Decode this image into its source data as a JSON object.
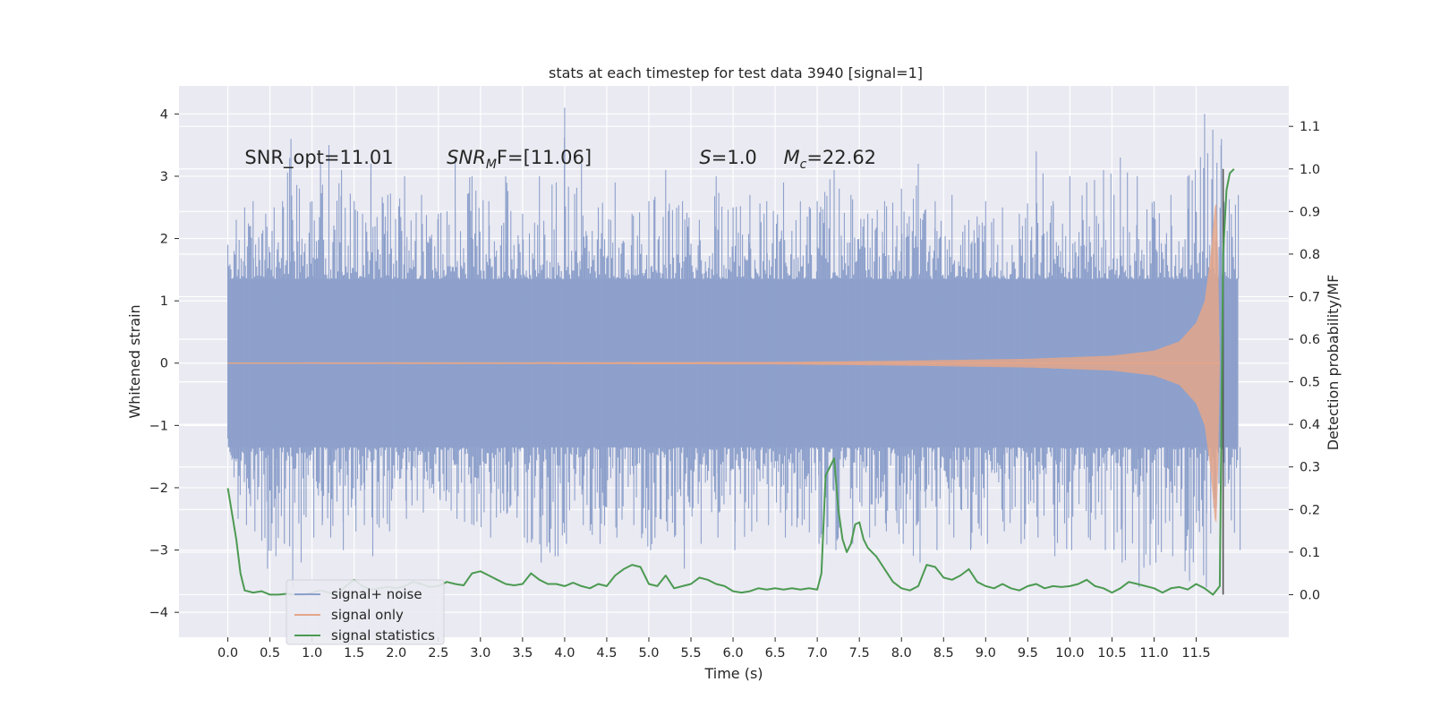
{
  "chart_data": {
    "type": "line",
    "title": "stats at each timestep for test data 3940 [signal=1]",
    "xlabel": "Time (s)",
    "ylabel": "Whitened strain",
    "y2label": "Detection probability/MF",
    "xlim": [
      -0.58,
      12.6
    ],
    "ylim": [
      -4.4,
      4.45
    ],
    "y2lim": [
      -0.1,
      1.195
    ],
    "xticks": [
      0.0,
      0.5,
      1.0,
      1.5,
      2.0,
      2.5,
      3.0,
      3.5,
      4.0,
      4.5,
      5.0,
      5.5,
      6.0,
      6.5,
      7.0,
      7.5,
      8.0,
      8.5,
      9.0,
      9.5,
      10.0,
      10.5,
      11.0,
      11.5
    ],
    "xtick_labels": [
      "0.0",
      "0.5",
      "1.0",
      "1.5",
      "2.0",
      "2.5",
      "3.0",
      "3.5",
      "4.0",
      "4.5",
      "5.0",
      "5.5",
      "6.0",
      "6.5",
      "7.0",
      "7.5",
      "8.0",
      "8.5",
      "9.0",
      "9.5",
      "10.0",
      "10.5",
      "11.0",
      "11.5"
    ],
    "yticks": [
      4,
      3,
      2,
      1,
      0,
      -1,
      -2,
      -3,
      -4
    ],
    "ytick_labels": [
      "4",
      "3",
      "2",
      "1",
      "0",
      "−1",
      "−2",
      "−3",
      "−4"
    ],
    "y2ticks": [
      1.1,
      1.0,
      0.9,
      0.8,
      0.7,
      0.6,
      0.5,
      0.4,
      0.3,
      0.2,
      0.1,
      0.0
    ],
    "y2tick_labels": [
      "1.1",
      "1.0",
      "0.9",
      "0.8",
      "0.7",
      "0.6",
      "0.5",
      "0.4",
      "0.3",
      "0.2",
      "0.1",
      "0.0"
    ],
    "grid": true,
    "legend_position": "lower-left",
    "colors": {
      "noise": "#8da0cb",
      "signal": "#e4a68a",
      "stats": "#4c9a52",
      "marker": "#555555",
      "background": "#eaeaf2"
    },
    "annotations": [
      {
        "label": "SNR_opt=11.01",
        "x": 0.2,
        "y": 3.3,
        "italic": false
      },
      {
        "label": "SNR",
        "sub": "M",
        "rest": "F=[11.06]",
        "x": 2.6,
        "y": 3.3,
        "italic": true
      },
      {
        "label": "S",
        "rest": "=1.0",
        "x": 5.6,
        "y": 3.3,
        "italic": true
      },
      {
        "label": "M",
        "sub": "c",
        "rest": "=22.62",
        "x": 6.6,
        "y": 3.3,
        "italic": true
      }
    ],
    "series": [
      {
        "name": "signal+ noise",
        "kind": "noise_band",
        "x_range": [
          0.0,
          12.0
        ],
        "band_upper": 1.35,
        "band_lower": -1.35,
        "peak_envelope": [
          [
            0.0,
            1.9,
            -1.1
          ],
          [
            0.1,
            2.3,
            -2.5
          ],
          [
            0.2,
            2.5,
            -2.6
          ],
          [
            0.3,
            2.6,
            -2.7
          ],
          [
            0.45,
            2.4,
            -3.3
          ],
          [
            0.55,
            2.5,
            -3.1
          ],
          [
            0.65,
            2.6,
            -2.9
          ],
          [
            0.75,
            3.6,
            -3.6
          ],
          [
            0.85,
            2.8,
            -3.2
          ],
          [
            1.0,
            2.6,
            -2.8
          ],
          [
            1.1,
            3.2,
            -2.6
          ],
          [
            1.2,
            3.5,
            -2.8
          ],
          [
            1.35,
            3.1,
            -3.0
          ],
          [
            1.5,
            2.6,
            -2.7
          ],
          [
            1.6,
            2.4,
            -2.6
          ],
          [
            1.7,
            3.2,
            -3.1
          ],
          [
            1.9,
            2.7,
            -2.7
          ],
          [
            2.1,
            3.0,
            -2.5
          ],
          [
            2.3,
            2.7,
            -2.4
          ],
          [
            2.5,
            2.4,
            -2.2
          ],
          [
            2.7,
            3.3,
            -2.5
          ],
          [
            2.9,
            3.0,
            -2.6
          ],
          [
            3.1,
            2.6,
            -2.8
          ],
          [
            3.3,
            3.0,
            -2.4
          ],
          [
            3.5,
            2.4,
            -2.8
          ],
          [
            3.7,
            3.0,
            -3.2
          ],
          [
            3.9,
            2.9,
            -3.1
          ],
          [
            4.0,
            4.1,
            -2.9
          ],
          [
            4.2,
            3.2,
            -2.6
          ],
          [
            4.4,
            2.5,
            -2.9
          ],
          [
            4.6,
            2.9,
            -2.8
          ],
          [
            4.8,
            2.4,
            -2.6
          ],
          [
            5.0,
            2.6,
            -3.0
          ],
          [
            5.2,
            3.1,
            -2.7
          ],
          [
            5.4,
            2.6,
            -3.3
          ],
          [
            5.6,
            2.3,
            -2.9
          ],
          [
            5.8,
            3.0,
            -2.8
          ],
          [
            6.0,
            2.5,
            -3.0
          ],
          [
            6.2,
            2.7,
            -2.7
          ],
          [
            6.4,
            2.6,
            -2.6
          ],
          [
            6.6,
            2.9,
            -2.8
          ],
          [
            6.8,
            2.6,
            -2.6
          ],
          [
            7.0,
            2.6,
            -2.9
          ],
          [
            7.2,
            3.1,
            -3.0
          ],
          [
            7.4,
            2.7,
            -2.9
          ],
          [
            7.6,
            2.4,
            -2.8
          ],
          [
            7.8,
            2.6,
            -2.7
          ],
          [
            8.0,
            2.8,
            -2.9
          ],
          [
            8.2,
            3.2,
            -3.2
          ],
          [
            8.4,
            2.6,
            -3.0
          ],
          [
            8.6,
            2.7,
            -2.8
          ],
          [
            8.8,
            2.3,
            -3.0
          ],
          [
            9.0,
            2.6,
            -2.9
          ],
          [
            9.2,
            2.5,
            -2.7
          ],
          [
            9.4,
            2.4,
            -2.9
          ],
          [
            9.6,
            3.4,
            -2.8
          ],
          [
            9.8,
            2.6,
            -3.1
          ],
          [
            10.0,
            3.0,
            -3.0
          ],
          [
            10.2,
            2.9,
            -2.8
          ],
          [
            10.4,
            3.1,
            -3.0
          ],
          [
            10.6,
            3.3,
            -3.2
          ],
          [
            10.8,
            3.0,
            -3.6
          ],
          [
            11.0,
            2.6,
            -3.2
          ],
          [
            11.2,
            2.7,
            -3.1
          ],
          [
            11.4,
            3.0,
            -3.5
          ],
          [
            11.6,
            4.0,
            -3.6
          ],
          [
            11.8,
            3.6,
            -2.5
          ],
          [
            12.0,
            2.7,
            -3.0
          ]
        ]
      },
      {
        "name": "signal only",
        "kind": "chirp",
        "x_range": [
          0.0,
          11.78
        ],
        "amplitude": [
          [
            0.0,
            0.01
          ],
          [
            6.5,
            0.02
          ],
          [
            8.0,
            0.04
          ],
          [
            9.5,
            0.07
          ],
          [
            10.5,
            0.12
          ],
          [
            11.0,
            0.2
          ],
          [
            11.3,
            0.35
          ],
          [
            11.5,
            0.65
          ],
          [
            11.6,
            1.0
          ],
          [
            11.67,
            1.7
          ],
          [
            11.72,
            2.5
          ],
          [
            11.75,
            2.6
          ],
          [
            11.78,
            0.0
          ]
        ]
      },
      {
        "name": "signal statistics",
        "kind": "line",
        "x": [
          0.0,
          0.1,
          0.15,
          0.2,
          0.3,
          0.4,
          0.5,
          0.6,
          0.7,
          0.8,
          0.9,
          1.0,
          1.1,
          1.2,
          1.3,
          1.4,
          1.5,
          1.6,
          1.7,
          1.8,
          1.9,
          2.0,
          2.1,
          2.2,
          2.3,
          2.4,
          2.5,
          2.6,
          2.7,
          2.8,
          2.9,
          3.0,
          3.1,
          3.2,
          3.3,
          3.4,
          3.5,
          3.6,
          3.7,
          3.8,
          3.9,
          4.0,
          4.1,
          4.2,
          4.3,
          4.4,
          4.5,
          4.6,
          4.7,
          4.8,
          4.9,
          5.0,
          5.1,
          5.2,
          5.3,
          5.4,
          5.5,
          5.6,
          5.7,
          5.8,
          5.9,
          6.0,
          6.1,
          6.2,
          6.3,
          6.4,
          6.5,
          6.6,
          6.7,
          6.8,
          6.9,
          7.0,
          7.05,
          7.1,
          7.15,
          7.2,
          7.25,
          7.3,
          7.35,
          7.4,
          7.45,
          7.5,
          7.55,
          7.6,
          7.65,
          7.7,
          7.8,
          7.9,
          8.0,
          8.1,
          8.2,
          8.3,
          8.4,
          8.5,
          8.6,
          8.7,
          8.8,
          8.9,
          9.0,
          9.1,
          9.2,
          9.3,
          9.4,
          9.5,
          9.6,
          9.7,
          9.8,
          9.9,
          10.0,
          10.1,
          10.2,
          10.3,
          10.4,
          10.5,
          10.6,
          10.7,
          10.8,
          10.9,
          11.0,
          11.1,
          11.2,
          11.3,
          11.4,
          11.5,
          11.6,
          11.7,
          11.78,
          11.82,
          11.86,
          11.9,
          11.95
        ],
        "y": [
          0.25,
          0.13,
          0.05,
          0.01,
          0.005,
          0.008,
          0.0,
          0.0,
          0.002,
          0.0,
          0.0,
          0.005,
          0.01,
          0.005,
          0.0,
          0.02,
          0.035,
          0.02,
          0.012,
          0.015,
          0.018,
          0.015,
          0.02,
          0.03,
          0.025,
          0.018,
          0.02,
          0.03,
          0.025,
          0.022,
          0.05,
          0.055,
          0.045,
          0.035,
          0.025,
          0.022,
          0.025,
          0.05,
          0.035,
          0.025,
          0.025,
          0.02,
          0.028,
          0.02,
          0.015,
          0.025,
          0.02,
          0.045,
          0.06,
          0.07,
          0.065,
          0.025,
          0.02,
          0.045,
          0.015,
          0.02,
          0.025,
          0.04,
          0.035,
          0.025,
          0.02,
          0.008,
          0.005,
          0.008,
          0.015,
          0.012,
          0.015,
          0.012,
          0.015,
          0.012,
          0.015,
          0.012,
          0.05,
          0.28,
          0.3,
          0.32,
          0.2,
          0.13,
          0.1,
          0.12,
          0.165,
          0.17,
          0.13,
          0.11,
          0.1,
          0.09,
          0.06,
          0.03,
          0.015,
          0.01,
          0.02,
          0.07,
          0.065,
          0.04,
          0.035,
          0.045,
          0.06,
          0.03,
          0.02,
          0.015,
          0.025,
          0.015,
          0.01,
          0.02,
          0.025,
          0.015,
          0.02,
          0.018,
          0.02,
          0.025,
          0.035,
          0.02,
          0.015,
          0.005,
          0.015,
          0.03,
          0.025,
          0.02,
          0.015,
          0.005,
          0.015,
          0.018,
          0.012,
          0.025,
          0.015,
          0.0,
          0.02,
          0.8,
          0.95,
          0.99,
          1.0
        ]
      }
    ],
    "vline": {
      "x": 11.82,
      "y2_top": 1.0,
      "y2_bottom": 0.0
    },
    "seed": 3940
  }
}
